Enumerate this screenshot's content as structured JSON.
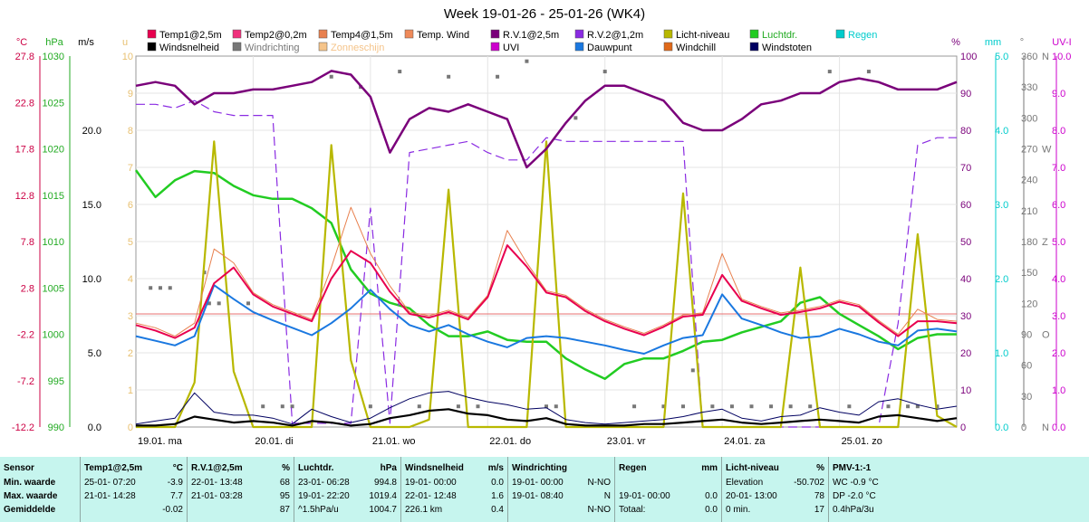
{
  "title": "Week 19-01-26 - 25-01-26 (WK4)",
  "colors": {
    "temp1": "#e8004e",
    "temp2": "#f0307c",
    "temp4": "#e8804e",
    "tempwind": "#ef8a5a",
    "rv1": "#7a007a",
    "rv2": "#8a2be2",
    "licht": "#b8b800",
    "luchtdr": "#22cc22",
    "regen": "#00cccc",
    "windsnelheid": "#000000",
    "windrichting": "#777777",
    "zonneschijn": "#f5c48a",
    "uvi": "#cc00cc",
    "dauwpunt": "#1a78e0",
    "windchill": "#e06a1a",
    "windstoten": "#000060",
    "stats_bg": "#c6f5ee"
  },
  "legend": [
    {
      "label": "Temp1@2,5m",
      "key": "temp1"
    },
    {
      "label": "Temp2@0,2m",
      "key": "temp2"
    },
    {
      "label": "Temp4@1,5m",
      "key": "temp4"
    },
    {
      "label": "Temp. Wind",
      "key": "tempwind"
    },
    {
      "label": "R.V.1@2,5m",
      "key": "rv1"
    },
    {
      "label": "R.V.2@1,2m",
      "key": "rv2"
    },
    {
      "label": "Licht-niveau",
      "key": "licht"
    },
    {
      "label": "Luchtdr.",
      "key": "luchtdr",
      "text_color": "#22aa22"
    },
    {
      "label": "Regen",
      "key": "regen",
      "text_color": "#00cccc"
    },
    {
      "label": "Windsnelheid",
      "key": "windsnelheid"
    },
    {
      "label": "Windrichting",
      "key": "windrichting",
      "text_color": "#777777"
    },
    {
      "label": "Zonneschijn",
      "key": "zonneschijn",
      "text_color": "#f5c48a"
    },
    {
      "label": "UVI",
      "key": "uvi"
    },
    {
      "label": "Dauwpunt",
      "key": "dauwpunt"
    },
    {
      "label": "Windchill",
      "key": "windchill"
    },
    {
      "label": "Windstoten",
      "key": "windstoten"
    }
  ],
  "axes": {
    "temp": {
      "unit": "°C",
      "ticks": [
        "27.8",
        "22.8",
        "17.8",
        "12.8",
        "7.8",
        "2.8",
        "-2.2",
        "-7.2",
        "-12.2"
      ],
      "color": "#cc0044"
    },
    "pressure": {
      "unit": "hPa",
      "ticks": [
        "1030",
        "1025",
        "1020",
        "1015",
        "1010",
        "1005",
        "1000",
        "995",
        "990"
      ],
      "color": "#22aa22"
    },
    "wind": {
      "unit": "m/s",
      "ticks": [
        "20.0",
        "15.0",
        "10.0",
        "5.0",
        "0.0"
      ],
      "color": "#000000"
    },
    "light": {
      "unit": "u",
      "ticks": [
        "10",
        "9",
        "8",
        "7",
        "6",
        "5",
        "4",
        "3",
        "2",
        "1",
        "0"
      ],
      "color": "#e8c070"
    },
    "humidity": {
      "unit": "%",
      "ticks": [
        "100",
        "90",
        "80",
        "70",
        "60",
        "50",
        "40",
        "30",
        "20",
        "10",
        "0"
      ],
      "color": "#7a007a"
    },
    "rain": {
      "unit": "mm",
      "ticks": [
        "5.0",
        "4.0",
        "3.0",
        "2.0",
        "1.0",
        "0.0"
      ],
      "color": "#00cccc"
    },
    "direction": {
      "unit": "°",
      "ticks": [
        "360",
        "330",
        "300",
        "270",
        "240",
        "210",
        "180",
        "150",
        "120",
        "90",
        "60",
        "30",
        "0"
      ],
      "color": "#777777"
    },
    "compass": {
      "ticks": [
        "N",
        "W",
        "Z",
        "O",
        "N"
      ],
      "color": "#777777"
    },
    "uv": {
      "unit": "UV-I",
      "ticks": [
        "10.0",
        "9.0",
        "8.0",
        "7.0",
        "6.0",
        "5.0",
        "4.0",
        "3.0",
        "2.0",
        "1.0",
        "0.0"
      ],
      "color": "#cc00cc"
    },
    "days": [
      "19.01. ma",
      "20.01. di",
      "21.01. wo",
      "22.01. do",
      "23.01. vr",
      "24.01. za",
      "25.01. zo"
    ]
  },
  "chart_data": {
    "type": "line",
    "title": "Week 19-01-26 - 25-01-26 (WK4)",
    "x_unit": "hour since 19.01 00:00",
    "x": [
      0,
      4,
      8,
      12,
      16,
      20,
      24,
      28,
      32,
      36,
      40,
      44,
      48,
      52,
      56,
      60,
      64,
      68,
      72,
      76,
      80,
      84,
      88,
      92,
      96,
      100,
      104,
      108,
      112,
      116,
      120,
      124,
      128,
      132,
      136,
      140,
      144,
      148,
      152,
      156,
      160,
      164,
      168
    ],
    "series": [
      {
        "name": "Temp1@2,5m",
        "key": "temp1",
        "axis": "temp",
        "values": [
          -1.2,
          -1.8,
          -2.6,
          -1.5,
          3.3,
          5.0,
          2.1,
          0.8,
          0.0,
          -0.8,
          3.8,
          6.8,
          5.5,
          2.4,
          0.0,
          -0.4,
          0.2,
          -0.6,
          1.8,
          7.4,
          5.1,
          2.3,
          1.8,
          0.3,
          -0.8,
          -1.6,
          -2.3,
          -1.4,
          -0.3,
          -0.1,
          4.2,
          1.4,
          0.6,
          -0.1,
          0.2,
          0.6,
          1.3,
          0.8,
          -0.9,
          -2.4,
          -0.8,
          -0.8,
          -1.0
        ]
      },
      {
        "name": "Temp4@1,5m",
        "key": "temp4",
        "axis": "temp",
        "values": [
          -1.0,
          -1.5,
          -2.4,
          -1.0,
          7.0,
          5.5,
          2.3,
          1.0,
          0.2,
          -0.6,
          5.0,
          11.5,
          6.5,
          3.0,
          0.2,
          -0.2,
          0.4,
          -0.4,
          2.0,
          9.0,
          5.5,
          2.5,
          2.0,
          0.5,
          -0.6,
          -1.4,
          -2.1,
          -1.2,
          -0.1,
          0.1,
          6.5,
          1.6,
          0.8,
          0.1,
          0.4,
          0.8,
          1.5,
          1.0,
          -0.7,
          -2.2,
          0.5,
          -0.6,
          -0.8
        ]
      },
      {
        "name": "Dauwpunt",
        "key": "dauwpunt",
        "axis": "temp",
        "values": [
          -2.4,
          -2.9,
          -3.4,
          -2.4,
          3.1,
          1.6,
          0.2,
          -0.7,
          -1.5,
          -2.3,
          -1.0,
          0.6,
          2.6,
          0.5,
          -1.2,
          -1.9,
          -1.2,
          -2.2,
          -3.0,
          -3.6,
          -2.6,
          -2.4,
          -2.6,
          -3.0,
          -3.4,
          -3.9,
          -4.3,
          -3.4,
          -2.6,
          -2.3,
          2.1,
          -0.5,
          -1.2,
          -2.0,
          -2.6,
          -2.4,
          -1.6,
          -2.2,
          -3.0,
          -3.4,
          -1.8,
          -1.6,
          -1.9
        ]
      },
      {
        "name": "R.V.1@2,5m",
        "key": "rv1",
        "axis": "humidity",
        "values": [
          92,
          93,
          92,
          87,
          90,
          90,
          91,
          91,
          92,
          93,
          96,
          95,
          89,
          74,
          83,
          86,
          85,
          87,
          85,
          83,
          70,
          75,
          82,
          88,
          92,
          92,
          90,
          88,
          82,
          80,
          80,
          83,
          87,
          88,
          90,
          90,
          93,
          94,
          93,
          91,
          91,
          91,
          93
        ]
      },
      {
        "name": "R.V.2@1,2m",
        "key": "rv2",
        "axis": "humidity",
        "values": [
          87,
          87,
          86,
          88,
          85,
          84,
          84,
          84,
          1,
          1,
          1,
          1,
          59,
          1,
          74,
          75,
          76,
          77,
          74,
          72,
          72,
          78,
          77,
          77,
          77,
          77,
          77,
          77,
          77,
          0,
          0,
          0,
          0,
          0,
          0,
          0,
          0,
          0,
          0,
          28,
          76,
          78,
          78
        ]
      },
      {
        "name": "Luchtdr.",
        "key": "luchtdr",
        "axis": "pressure",
        "values": [
          1017.7,
          1014.8,
          1016.6,
          1017.6,
          1017.4,
          1016.0,
          1015.0,
          1014.6,
          1014.6,
          1013.6,
          1012.0,
          1007.0,
          1004.4,
          1003.4,
          1002.8,
          1001.0,
          999.8,
          999.8,
          1000.3,
          999.4,
          999.2,
          999.2,
          997.4,
          996.2,
          995.2,
          996.8,
          997.4,
          997.4,
          998.2,
          999.2,
          999.4,
          1000.2,
          1000.8,
          1001.4,
          1003.4,
          1004.0,
          1002.2,
          1001.0,
          999.8,
          998.4,
          999.6,
          1000.0,
          1000.0
        ]
      },
      {
        "name": "Licht-niveau",
        "key": "licht",
        "axis": "light",
        "values": [
          0,
          0,
          0,
          1.2,
          7.7,
          1.5,
          0,
          0,
          0,
          0,
          7.6,
          1.8,
          0,
          0,
          0,
          0.2,
          6.4,
          0,
          0,
          0,
          0,
          7.7,
          0,
          0,
          0,
          0,
          0,
          0,
          6.3,
          0,
          0,
          0,
          0,
          0,
          4.3,
          0,
          0,
          0,
          0,
          0,
          5.2,
          0.3,
          0
        ]
      },
      {
        "name": "Windsnelheid",
        "key": "windsnelheid",
        "axis": "wind",
        "values": [
          0.1,
          0.1,
          0.2,
          0.7,
          0.5,
          0.3,
          0.4,
          0.3,
          0.1,
          0.4,
          0.3,
          0.1,
          0.2,
          0.6,
          0.8,
          1.1,
          1.2,
          0.9,
          0.8,
          0.5,
          0.4,
          0.6,
          0.2,
          0.1,
          0.1,
          0.1,
          0.2,
          0.2,
          0.3,
          0.4,
          0.5,
          0.3,
          0.2,
          0.3,
          0.4,
          0.5,
          0.4,
          0.3,
          0.7,
          0.8,
          0.6,
          0.4,
          0.6
        ]
      },
      {
        "name": "Windstoten",
        "key": "windstoten",
        "axis": "wind",
        "values": [
          0.2,
          0.4,
          0.6,
          2.3,
          1.0,
          0.8,
          0.8,
          0.6,
          0.2,
          1.2,
          0.7,
          0.3,
          0.6,
          1.3,
          1.9,
          2.3,
          2.4,
          2.0,
          1.7,
          1.5,
          1.2,
          1.3,
          0.5,
          0.3,
          0.2,
          0.3,
          0.4,
          0.5,
          0.7,
          1.0,
          1.2,
          0.6,
          0.4,
          0.7,
          0.8,
          1.3,
          1.0,
          0.8,
          1.7,
          1.9,
          1.5,
          1.2,
          1.4
        ]
      }
    ],
    "windrichting_points": {
      "name": "Windrichting",
      "axis": "direction",
      "x": [
        3,
        5,
        7,
        14,
        15,
        17,
        23,
        26,
        30,
        32,
        40,
        46,
        48,
        54,
        58,
        64,
        66,
        70,
        74,
        80,
        84,
        86,
        90,
        96,
        102,
        108,
        112,
        114,
        118,
        122,
        126,
        130,
        134,
        138,
        142,
        146,
        150,
        154,
        158,
        160,
        164
      ],
      "y": [
        135,
        135,
        135,
        150,
        120,
        120,
        120,
        20,
        20,
        20,
        340,
        330,
        20,
        345,
        20,
        340,
        20,
        20,
        340,
        355,
        20,
        20,
        300,
        345,
        20,
        20,
        20,
        55,
        20,
        20,
        20,
        20,
        20,
        20,
        345,
        20,
        345,
        20,
        20,
        20,
        20
      ]
    },
    "ref_lines": [
      {
        "axis": "temp",
        "value": 0.0,
        "color": "#e87070"
      }
    ]
  },
  "stats": {
    "columns": [
      {
        "title": "Sensor",
        "unit": "",
        "rows": [
          {
            "label": "Min. waarde"
          },
          {
            "label": "Max. waarde"
          },
          {
            "label": "Gemiddelde"
          }
        ]
      },
      {
        "title": "Temp1@2,5m",
        "unit": "°C",
        "rows": [
          {
            "date": "25-01- 07:20",
            "value": "-3.9"
          },
          {
            "date": "21-01- 14:28",
            "value": "7.7"
          },
          {
            "date": "",
            "value": "-0.02"
          }
        ]
      },
      {
        "title": "R.V.1@2,5m",
        "unit": "%",
        "rows": [
          {
            "date": "22-01- 13:48",
            "value": "68"
          },
          {
            "date": "21-01- 03:28",
            "value": "95"
          },
          {
            "date": "",
            "value": "87"
          }
        ]
      },
      {
        "title": "Luchtdr.",
        "unit": "hPa",
        "rows": [
          {
            "date": "23-01- 06:28",
            "value": "994.8"
          },
          {
            "date": "19-01- 22:20",
            "value": "1019.4"
          },
          {
            "date": "^1.5hPa/u",
            "value": "1004.7"
          }
        ]
      },
      {
        "title": "Windsnelheid",
        "unit": "m/s",
        "rows": [
          {
            "date": "19-01- 00:00",
            "value": "0.0"
          },
          {
            "date": "22-01- 12:48",
            "value": "1.6"
          },
          {
            "date": "226.1 km",
            "value": "0.4"
          }
        ]
      },
      {
        "title": "Windrichting",
        "unit": "",
        "rows": [
          {
            "date": "19-01- 00:00",
            "value": "N-NO"
          },
          {
            "date": "19-01- 08:40",
            "value": "N"
          },
          {
            "date": "",
            "value": "N-NO"
          }
        ]
      },
      {
        "title": "Regen",
        "unit": "mm",
        "rows": [
          {
            "date": "",
            "value": ""
          },
          {
            "date": "19-01- 00:00",
            "value": "0.0"
          },
          {
            "date": "Totaal:",
            "value": "0.0"
          }
        ]
      },
      {
        "title": "Licht-niveau",
        "unit": "%",
        "rows": [
          {
            "date": "Elevation",
            "value": "-50.702"
          },
          {
            "date": "20-01- 13:00",
            "value": "78"
          },
          {
            "date": "0 min.",
            "value": "17"
          }
        ]
      },
      {
        "title": "PMV-1:-1",
        "unit": "",
        "rows": [
          {
            "date": "WC -0.9 °C",
            "value": ""
          },
          {
            "date": "DP -2.0 °C",
            "value": ""
          },
          {
            "date": "0.4hPa/3u",
            "value": ""
          }
        ]
      }
    ]
  }
}
